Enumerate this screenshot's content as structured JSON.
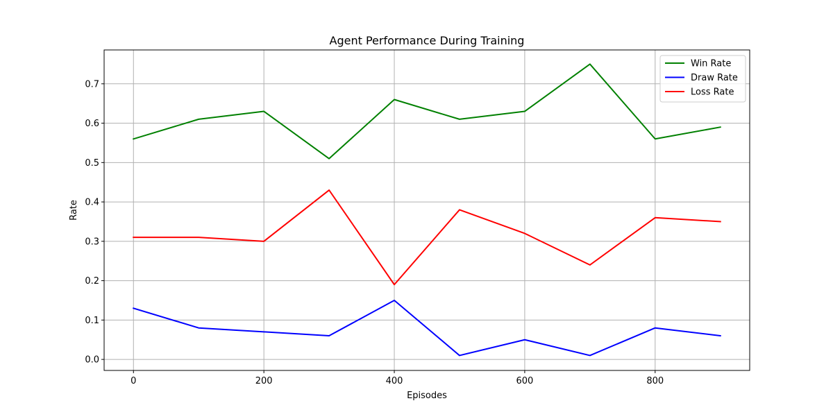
{
  "chart_data": {
    "type": "line",
    "title": "Agent Performance During Training",
    "xlabel": "Episodes",
    "ylabel": "Rate",
    "x": [
      0,
      100,
      200,
      300,
      400,
      500,
      600,
      700,
      800,
      900
    ],
    "xlim": [
      -45,
      945
    ],
    "ylim": [
      -0.028,
      0.786
    ],
    "xticks": [
      0,
      200,
      400,
      600,
      800
    ],
    "yticks": [
      0.0,
      0.1,
      0.2,
      0.3,
      0.4,
      0.5,
      0.6,
      0.7
    ],
    "grid": true,
    "legend_position": "top-right",
    "series": [
      {
        "name": "Win Rate",
        "color": "#008000",
        "values": [
          0.56,
          0.61,
          0.63,
          0.51,
          0.66,
          0.61,
          0.63,
          0.75,
          0.56,
          0.59
        ]
      },
      {
        "name": "Draw Rate",
        "color": "#0000ff",
        "values": [
          0.13,
          0.08,
          0.07,
          0.06,
          0.15,
          0.01,
          0.05,
          0.01,
          0.08,
          0.06
        ]
      },
      {
        "name": "Loss Rate",
        "color": "#ff0000",
        "values": [
          0.31,
          0.31,
          0.3,
          0.43,
          0.19,
          0.38,
          0.32,
          0.24,
          0.36,
          0.35
        ]
      }
    ]
  }
}
